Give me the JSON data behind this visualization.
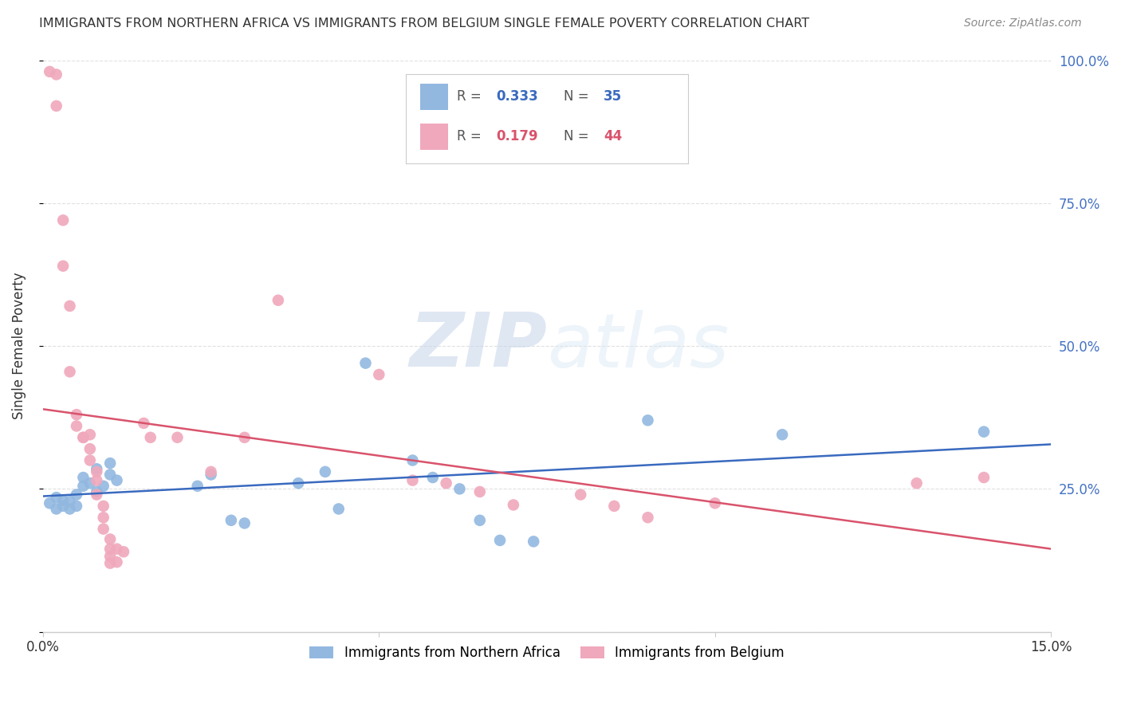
{
  "title": "IMMIGRANTS FROM NORTHERN AFRICA VS IMMIGRANTS FROM BELGIUM SINGLE FEMALE POVERTY CORRELATION CHART",
  "source": "Source: ZipAtlas.com",
  "ylabel": "Single Female Poverty",
  "legend_label1": "Immigrants from Northern Africa",
  "legend_label2": "Immigrants from Belgium",
  "legend_r1": "0.333",
  "legend_n1": "35",
  "legend_r2": "0.179",
  "legend_n2": "44",
  "yticks": [
    0.0,
    0.25,
    0.5,
    0.75,
    1.0
  ],
  "ytick_labels": [
    "",
    "25.0%",
    "50.0%",
    "75.0%",
    "100.0%"
  ],
  "xmin": 0.0,
  "xmax": 0.15,
  "ymin": 0.0,
  "ymax": 1.0,
  "watermark_zip": "ZIP",
  "watermark_atlas": "atlas",
  "blue_color": "#92b8e0",
  "pink_color": "#f0a8bc",
  "blue_line_color": "#3a6abf",
  "pink_line_color": "#d9536c",
  "blue_scatter": [
    [
      0.001,
      0.225
    ],
    [
      0.002,
      0.235
    ],
    [
      0.002,
      0.215
    ],
    [
      0.003,
      0.22
    ],
    [
      0.003,
      0.23
    ],
    [
      0.004,
      0.215
    ],
    [
      0.004,
      0.228
    ],
    [
      0.005,
      0.24
    ],
    [
      0.005,
      0.22
    ],
    [
      0.006,
      0.27
    ],
    [
      0.006,
      0.255
    ],
    [
      0.007,
      0.26
    ],
    [
      0.008,
      0.245
    ],
    [
      0.008,
      0.285
    ],
    [
      0.009,
      0.255
    ],
    [
      0.01,
      0.275
    ],
    [
      0.01,
      0.295
    ],
    [
      0.011,
      0.265
    ],
    [
      0.023,
      0.255
    ],
    [
      0.025,
      0.275
    ],
    [
      0.028,
      0.195
    ],
    [
      0.03,
      0.19
    ],
    [
      0.038,
      0.26
    ],
    [
      0.042,
      0.28
    ],
    [
      0.044,
      0.215
    ],
    [
      0.048,
      0.47
    ],
    [
      0.055,
      0.3
    ],
    [
      0.058,
      0.27
    ],
    [
      0.062,
      0.25
    ],
    [
      0.065,
      0.195
    ],
    [
      0.068,
      0.16
    ],
    [
      0.073,
      0.158
    ],
    [
      0.09,
      0.37
    ],
    [
      0.11,
      0.345
    ],
    [
      0.14,
      0.35
    ]
  ],
  "pink_scatter": [
    [
      0.001,
      0.98
    ],
    [
      0.002,
      0.975
    ],
    [
      0.002,
      0.92
    ],
    [
      0.003,
      0.72
    ],
    [
      0.003,
      0.64
    ],
    [
      0.004,
      0.57
    ],
    [
      0.004,
      0.455
    ],
    [
      0.005,
      0.38
    ],
    [
      0.005,
      0.36
    ],
    [
      0.006,
      0.34
    ],
    [
      0.006,
      0.34
    ],
    [
      0.007,
      0.345
    ],
    [
      0.007,
      0.32
    ],
    [
      0.007,
      0.3
    ],
    [
      0.008,
      0.28
    ],
    [
      0.008,
      0.265
    ],
    [
      0.008,
      0.24
    ],
    [
      0.009,
      0.22
    ],
    [
      0.009,
      0.2
    ],
    [
      0.009,
      0.18
    ],
    [
      0.01,
      0.162
    ],
    [
      0.01,
      0.145
    ],
    [
      0.01,
      0.132
    ],
    [
      0.01,
      0.12
    ],
    [
      0.011,
      0.145
    ],
    [
      0.011,
      0.122
    ],
    [
      0.012,
      0.14
    ],
    [
      0.015,
      0.365
    ],
    [
      0.016,
      0.34
    ],
    [
      0.02,
      0.34
    ],
    [
      0.025,
      0.28
    ],
    [
      0.03,
      0.34
    ],
    [
      0.035,
      0.58
    ],
    [
      0.05,
      0.45
    ],
    [
      0.055,
      0.265
    ],
    [
      0.06,
      0.26
    ],
    [
      0.065,
      0.245
    ],
    [
      0.07,
      0.222
    ],
    [
      0.08,
      0.24
    ],
    [
      0.085,
      0.22
    ],
    [
      0.09,
      0.2
    ],
    [
      0.1,
      0.225
    ],
    [
      0.13,
      0.26
    ],
    [
      0.14,
      0.27
    ]
  ],
  "title_color": "#333333",
  "source_color": "#888888",
  "axis_color": "#cccccc",
  "grid_color": "#e0e0e0",
  "right_ytick_color": "#4472c4",
  "xtick_positions": [
    0.0,
    0.05,
    0.1,
    0.15
  ],
  "xtick_labels": [
    "0.0%",
    "",
    "",
    "15.0%"
  ]
}
